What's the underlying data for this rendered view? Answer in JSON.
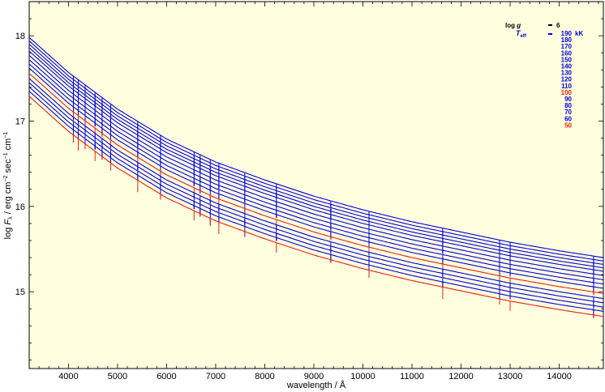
{
  "chart_data": {
    "type": "line",
    "xlabel": "wavelength / Å",
    "xlim": [
      3200,
      14900
    ],
    "ylim": [
      14.1,
      18.4
    ],
    "xticks": [
      4000,
      5000,
      6000,
      7000,
      8000,
      9000,
      10000,
      11000,
      12000,
      13000,
      14000
    ],
    "yticks": [
      15,
      16,
      17,
      18
    ],
    "plot_background": "#ffffe0",
    "legend": {
      "logg_label": "log g",
      "logg_value": "6",
      "teff_label": "Teff",
      "placement": "top-right"
    },
    "teff_unit": "kK",
    "highlight_color": "#e8200a",
    "series_color": "#0000dd",
    "line_features": [
      4100,
      4200,
      4340,
      4542,
      4686,
      4861,
      5412,
      5876,
      6560,
      6683,
      6890,
      7065,
      7593,
      8237,
      9345,
      10124,
      11626,
      12785,
      13000,
      14700
    ],
    "series": [
      {
        "name": "190",
        "color": "#0000dd",
        "x": [
          3200,
          4000,
          5000,
          6000,
          7000,
          8000,
          9000,
          10000,
          11000,
          12000,
          13000,
          14000,
          14900
        ],
        "values": [
          17.98,
          17.57,
          17.14,
          16.79,
          16.52,
          16.31,
          16.12,
          15.96,
          15.82,
          15.7,
          15.58,
          15.48,
          15.4
        ]
      },
      {
        "name": "180",
        "color": "#0000dd",
        "x": [
          3200,
          4000,
          5000,
          6000,
          7000,
          8000,
          9000,
          10000,
          11000,
          12000,
          13000,
          14000,
          14900
        ],
        "values": [
          17.94,
          17.53,
          17.1,
          16.75,
          16.48,
          16.27,
          16.08,
          15.92,
          15.78,
          15.66,
          15.54,
          15.44,
          15.36
        ]
      },
      {
        "name": "170",
        "color": "#0000dd",
        "x": [
          3200,
          4000,
          5000,
          6000,
          7000,
          8000,
          9000,
          10000,
          11000,
          12000,
          13000,
          14000,
          14900
        ],
        "values": [
          17.9,
          17.49,
          17.06,
          16.71,
          16.44,
          16.23,
          16.04,
          15.88,
          15.74,
          15.62,
          15.5,
          15.4,
          15.32
        ]
      },
      {
        "name": "160",
        "color": "#0000dd",
        "x": [
          3200,
          4000,
          5000,
          6000,
          7000,
          8000,
          9000,
          10000,
          11000,
          12000,
          13000,
          14000,
          14900
        ],
        "values": [
          17.86,
          17.45,
          17.02,
          16.67,
          16.4,
          16.19,
          16.0,
          15.84,
          15.7,
          15.58,
          15.46,
          15.36,
          15.28
        ]
      },
      {
        "name": "150",
        "color": "#0000dd",
        "x": [
          3200,
          4000,
          5000,
          6000,
          7000,
          8000,
          9000,
          10000,
          11000,
          12000,
          13000,
          14000,
          14900
        ],
        "values": [
          17.82,
          17.41,
          16.98,
          16.63,
          16.36,
          16.15,
          15.96,
          15.8,
          15.66,
          15.54,
          15.42,
          15.32,
          15.24
        ]
      },
      {
        "name": "140",
        "color": "#0000dd",
        "x": [
          3200,
          4000,
          5000,
          6000,
          7000,
          8000,
          9000,
          10000,
          11000,
          12000,
          13000,
          14000,
          14900
        ],
        "values": [
          17.77,
          17.36,
          16.93,
          16.58,
          16.31,
          16.1,
          15.91,
          15.75,
          15.61,
          15.49,
          15.37,
          15.27,
          15.19
        ]
      },
      {
        "name": "130",
        "color": "#0000dd",
        "x": [
          3200,
          4000,
          5000,
          6000,
          7000,
          8000,
          9000,
          10000,
          11000,
          12000,
          13000,
          14000,
          14900
        ],
        "values": [
          17.72,
          17.31,
          16.88,
          16.53,
          16.26,
          16.05,
          15.86,
          15.7,
          15.56,
          15.44,
          15.32,
          15.22,
          15.14
        ]
      },
      {
        "name": "120",
        "color": "#0000dd",
        "x": [
          3200,
          4000,
          5000,
          6000,
          7000,
          8000,
          9000,
          10000,
          11000,
          12000,
          13000,
          14000,
          14900
        ],
        "values": [
          17.67,
          17.26,
          16.83,
          16.48,
          16.21,
          16.0,
          15.81,
          15.65,
          15.51,
          15.39,
          15.27,
          15.17,
          15.09
        ]
      },
      {
        "name": "110",
        "color": "#0000dd",
        "x": [
          3200,
          4000,
          5000,
          6000,
          7000,
          8000,
          9000,
          10000,
          11000,
          12000,
          13000,
          14000,
          14900
        ],
        "values": [
          17.62,
          17.21,
          16.78,
          16.43,
          16.16,
          15.95,
          15.76,
          15.6,
          15.46,
          15.34,
          15.22,
          15.12,
          15.04
        ]
      },
      {
        "name": "100",
        "color": "#e8200a",
        "x": [
          3200,
          4000,
          5000,
          6000,
          7000,
          8000,
          9000,
          10000,
          11000,
          12000,
          13000,
          14000,
          14900
        ],
        "values": [
          17.56,
          17.15,
          16.72,
          16.37,
          16.1,
          15.89,
          15.7,
          15.54,
          15.4,
          15.28,
          15.16,
          15.06,
          14.98
        ]
      },
      {
        "name": "90",
        "color": "#0000dd",
        "x": [
          3200,
          4000,
          5000,
          6000,
          7000,
          8000,
          9000,
          10000,
          11000,
          12000,
          13000,
          14000,
          14900
        ],
        "values": [
          17.5,
          17.09,
          16.66,
          16.31,
          16.04,
          15.83,
          15.64,
          15.48,
          15.34,
          15.22,
          15.1,
          15.0,
          14.92
        ]
      },
      {
        "name": "80",
        "color": "#0000dd",
        "x": [
          3200,
          4000,
          5000,
          6000,
          7000,
          8000,
          9000,
          10000,
          11000,
          12000,
          13000,
          14000,
          14900
        ],
        "values": [
          17.45,
          17.04,
          16.61,
          16.26,
          15.99,
          15.78,
          15.59,
          15.43,
          15.29,
          15.17,
          15.05,
          14.95,
          14.87
        ]
      },
      {
        "name": "70",
        "color": "#0000dd",
        "x": [
          3200,
          4000,
          5000,
          6000,
          7000,
          8000,
          9000,
          10000,
          11000,
          12000,
          13000,
          14000,
          14900
        ],
        "values": [
          17.4,
          16.99,
          16.56,
          16.21,
          15.94,
          15.73,
          15.54,
          15.38,
          15.24,
          15.12,
          15.0,
          14.9,
          14.82
        ]
      },
      {
        "name": "60",
        "color": "#0000dd",
        "x": [
          3200,
          4000,
          5000,
          6000,
          7000,
          8000,
          9000,
          10000,
          11000,
          12000,
          13000,
          14000,
          14900
        ],
        "values": [
          17.35,
          16.94,
          16.51,
          16.16,
          15.89,
          15.68,
          15.49,
          15.33,
          15.19,
          15.07,
          14.95,
          14.85,
          14.77
        ]
      },
      {
        "name": "50",
        "color": "#e8200a",
        "x": [
          3200,
          4000,
          5000,
          6000,
          7000,
          8000,
          9000,
          10000,
          11000,
          12000,
          13000,
          14000,
          14900
        ],
        "values": [
          17.29,
          16.88,
          16.45,
          16.1,
          15.83,
          15.62,
          15.43,
          15.27,
          15.13,
          15.01,
          14.89,
          14.79,
          14.71
        ]
      }
    ]
  }
}
